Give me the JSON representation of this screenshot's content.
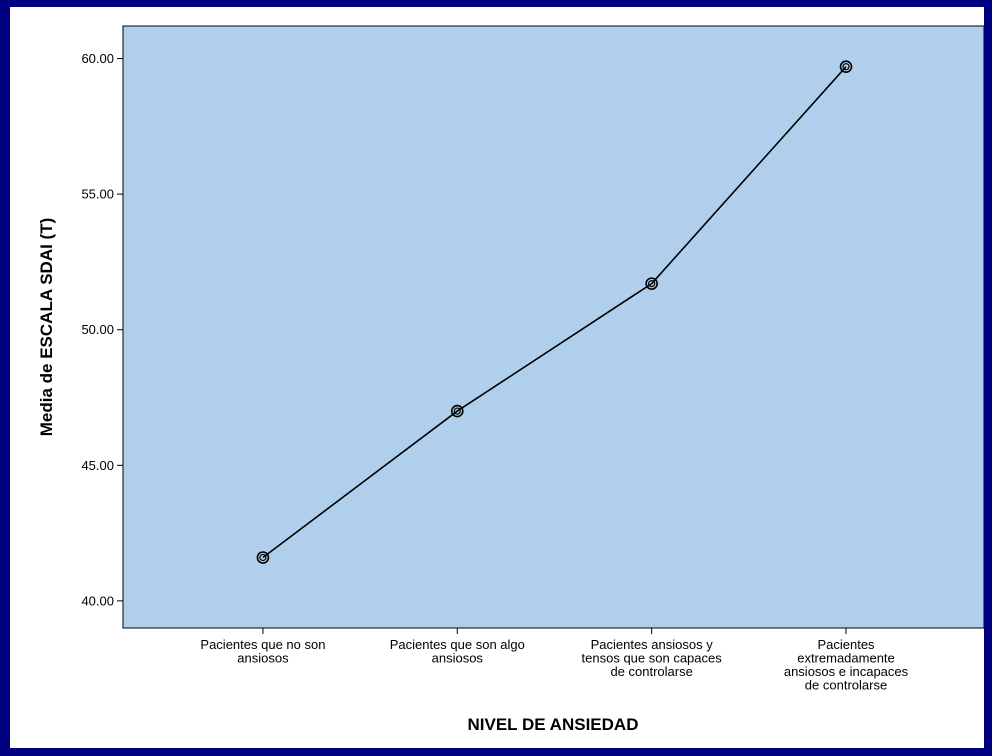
{
  "chart_data": {
    "type": "line",
    "xlabel": "NIVEL DE ANSIEDAD",
    "ylabel": "Media de ESCALA SDAI (T)",
    "categories": [
      [
        "Pacientes que no son",
        "ansiosos"
      ],
      [
        "Pacientes que son algo",
        "ansiosos"
      ],
      [
        "Pacientes ansiosos y",
        "tensos que son capaces",
        "de controlarse"
      ],
      [
        "Pacientes",
        "extremadamente",
        "ansiosos e incapaces",
        "de controlarse"
      ]
    ],
    "values": [
      41.6,
      47.0,
      51.7,
      59.7
    ],
    "yticks": [
      "40.00",
      "45.00",
      "50.00",
      "55.00",
      "60.00"
    ],
    "ylim": [
      39.0,
      61.2
    ],
    "grid": false,
    "plot_background": "#b0cfed",
    "line_color": "#000000",
    "marker": "circle"
  }
}
